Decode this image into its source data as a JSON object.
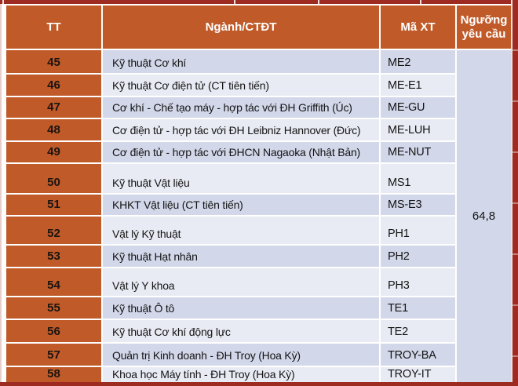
{
  "chart_data": {
    "type": "table",
    "title": "Admission threshold table (rows 45-58)",
    "columns": [
      "TT",
      "Ngành/CTĐT",
      "Mã XT",
      "Ngưỡng yêu cầu"
    ],
    "rows": [
      [
        "45",
        "Kỹ thuật Cơ khí",
        "ME2"
      ],
      [
        "46",
        "Kỹ thuật Cơ điện tử (CT tiên tiến)",
        "ME-E1"
      ],
      [
        "47",
        "Cơ khí - Chế tạo máy - hợp tác với ĐH Griffith (Úc)",
        "ME-GU"
      ],
      [
        "48",
        "Cơ điện tử - hợp tác với ĐH Leibniz Hannover (Đức)",
        "ME-LUH"
      ],
      [
        "49",
        "Cơ điện tử - hợp tác với ĐHCN Nagaoka (Nhật Bản)",
        "ME-NUT"
      ],
      [
        "50",
        "Kỹ thuật Vật liệu",
        "MS1"
      ],
      [
        "51",
        "KHKT Vật liệu (CT tiên tiến)",
        "MS-E3"
      ],
      [
        "52",
        "Vật lý Kỹ thuật",
        "PH1"
      ],
      [
        "53",
        "Kỹ thuật Hạt nhân",
        "PH2"
      ],
      [
        "54",
        "Vật lý Y khoa",
        "PH3"
      ],
      [
        "55",
        "Kỹ thuật Ô tô",
        "TE1"
      ],
      [
        "56",
        "Kỹ thuật Cơ khí động lực",
        "TE2"
      ],
      [
        "57",
        "Quản trị Kinh doanh - ĐH Troy (Hoa Kỳ)",
        "TROY-BA"
      ],
      [
        "58",
        "Khoa học Máy tính - ĐH Troy (Hoa Kỳ)",
        "TROY-IT"
      ]
    ],
    "threshold": "64,8",
    "merged_note": "Ngưỡng yêu cầu value 64,8 is one merged cell spanning all rows 45-58"
  },
  "colors": {
    "orange": "#C05A28",
    "maroon": "#9E2B21",
    "row_dark": "#D2D7E9",
    "row_light": "#E9EBF4",
    "text": "#141414",
    "header_text": "#FFFFFF"
  }
}
